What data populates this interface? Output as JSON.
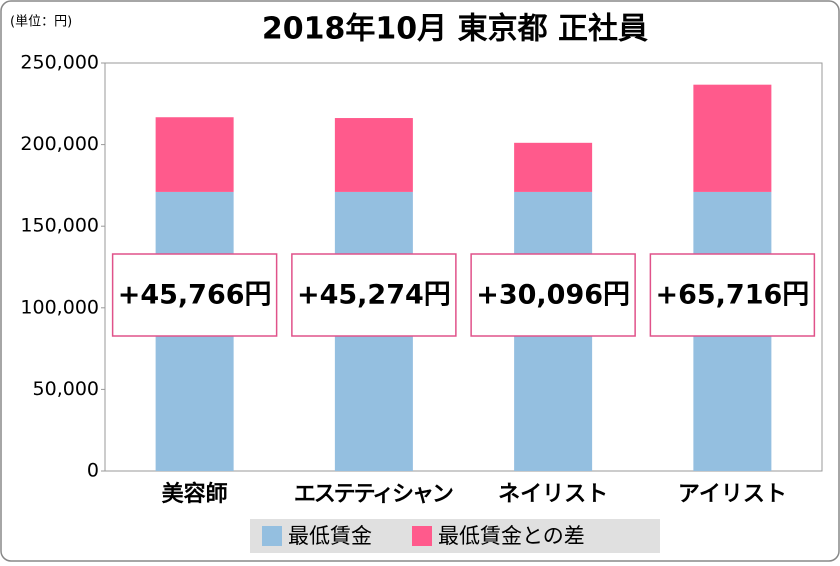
{
  "chart_data": {
    "type": "stacked_bar",
    "title": "2018年10月 東京都 正社員",
    "unit_label": "(単位：円)",
    "categories": [
      "美容師",
      "エステティシャン",
      "ネイリスト",
      "アイリスト"
    ],
    "series": [
      {
        "name": "最低賃金",
        "color": "#94bfe0",
        "values": [
          171000,
          171000,
          171000,
          171000
        ]
      },
      {
        "name": "最低賃金との差",
        "color": "#ff5a8c",
        "values": [
          45766,
          45274,
          30096,
          65716
        ],
        "value_labels": [
          "+45,766円",
          "+45,274円",
          "+30,096円",
          "+65,716円"
        ]
      }
    ],
    "ylim": [
      0,
      250000
    ],
    "yticks": [
      0,
      {
        "value": 50000,
        "label": "50,000"
      },
      {
        "value": 100000,
        "label": "100,000"
      },
      {
        "value": 150000,
        "label": "150,000"
      },
      {
        "value": 200000,
        "label": "200,000"
      },
      {
        "value": 250000,
        "label": "250,000"
      }
    ],
    "grid": false
  }
}
